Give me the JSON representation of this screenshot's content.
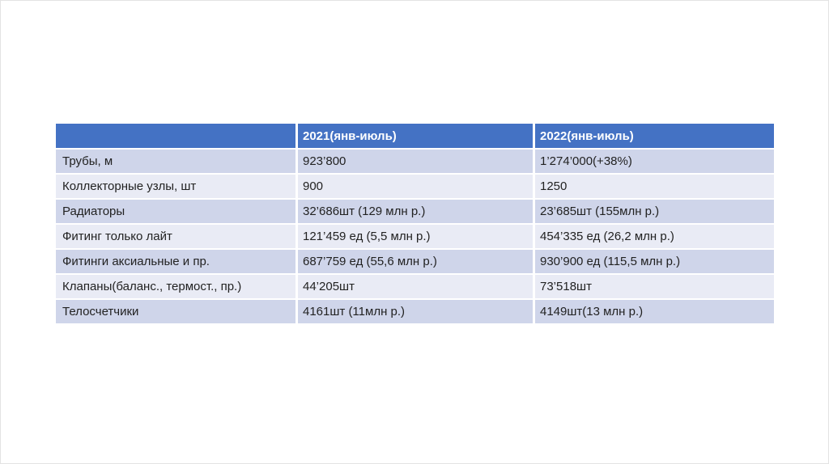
{
  "page": {
    "background_color": "#ffffff",
    "border_color": "#e3e3e3"
  },
  "table": {
    "colors": {
      "header_bg": "#4472c4",
      "header_text": "#ffffff",
      "row_band_dark": "#cfd5ea",
      "row_band_light": "#e9ebf5",
      "body_text": "#222222",
      "gap": "#ffffff"
    },
    "header": {
      "col0": "",
      "col1": "2021(янв-июль)",
      "col2": "2022(янв-июль)"
    },
    "rows": [
      {
        "label": "Трубы, м",
        "v2021": "923’800",
        "v2022": "1’274’000(+38%)"
      },
      {
        "label": "Коллекторные узлы, шт",
        "v2021": "900",
        "v2022": "1250"
      },
      {
        "label": "Радиаторы",
        "v2021": "32’686шт (129 млн р.)",
        "v2022": "23’685шт (155млн р.)"
      },
      {
        "label": "Фитинг только лайт",
        "v2021": "121’459 ед (5,5 млн р.)",
        "v2022": "454’335 ед (26,2 млн р.)"
      },
      {
        "label": "Фитинги аксиальные и пр.",
        "v2021": "687’759 ед (55,6 млн р.)",
        "v2022": "930’900 ед (115,5 млн р.)"
      },
      {
        "label": "Клапаны(баланс., термост., пр.)",
        "v2021": "44’205шт",
        "v2022": "73’518шт"
      },
      {
        "label": "Телосчетчики",
        "v2021": "4161шт (11млн р.)",
        "v2022": "4149шт(13 млн р.)"
      }
    ]
  }
}
